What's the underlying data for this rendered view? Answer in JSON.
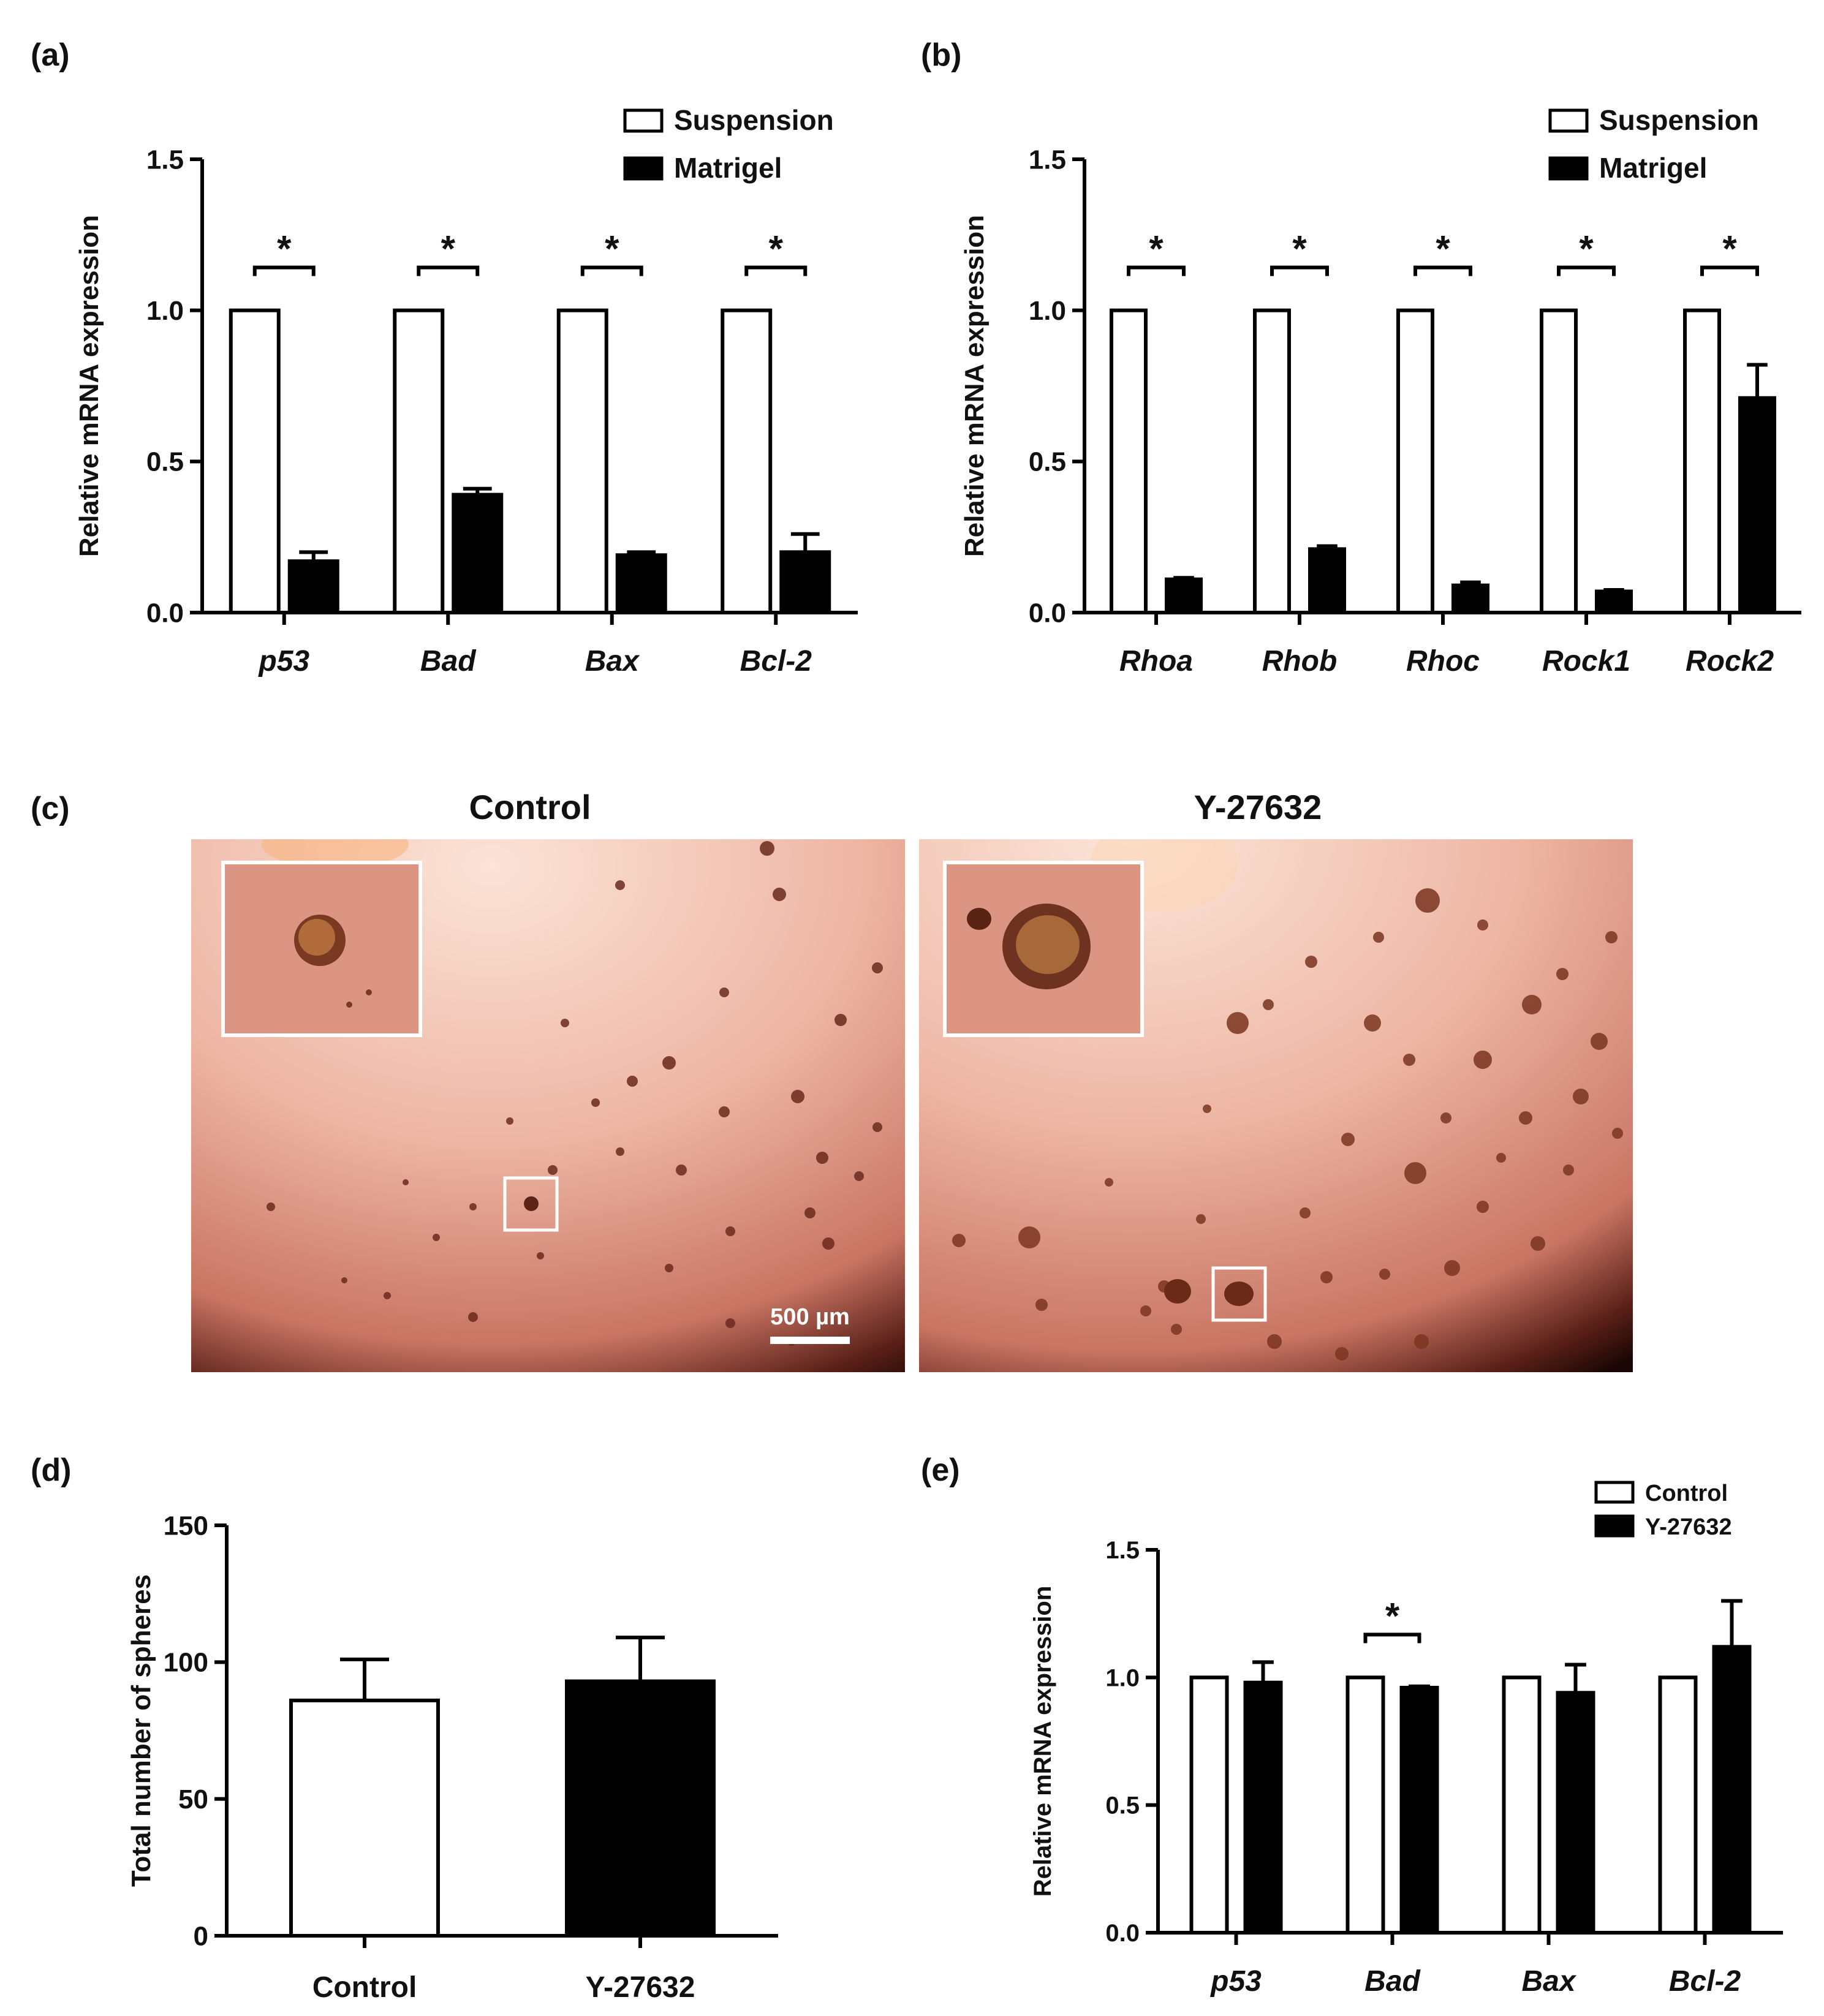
{
  "panels": {
    "a": "(a)",
    "b": "(b)",
    "c": "(c)",
    "d": "(d)",
    "e": "(e)"
  },
  "micrographs": {
    "left_title": "Control",
    "right_title": "Y-27632",
    "scale_bar_label": "500 µm",
    "background_color": "#e8a898"
  },
  "chart_data": [
    {
      "id": "a",
      "type": "bar",
      "categories": [
        "p53",
        "Bad",
        "Bax",
        "Bcl-2"
      ],
      "italic_categories": true,
      "series": [
        {
          "name": "Suspension",
          "fill": "#ffffff",
          "values": [
            1.0,
            1.0,
            1.0,
            1.0
          ],
          "errors": [
            0,
            0,
            0,
            0
          ]
        },
        {
          "name": "Matrigel",
          "fill": "#000000",
          "values": [
            0.17,
            0.39,
            0.19,
            0.2
          ],
          "errors": [
            0.03,
            0.02,
            0.01,
            0.06
          ]
        }
      ],
      "ylabel": "Relative mRNA expression",
      "ylim": [
        0,
        1.5
      ],
      "yticks": [
        "0.0",
        "0.5",
        "1.0",
        "1.5"
      ],
      "significance": [
        "*",
        "*",
        "*",
        "*"
      ],
      "legend": "top-right"
    },
    {
      "id": "b",
      "type": "bar",
      "categories": [
        "Rhoa",
        "Rhob",
        "Rhoc",
        "Rock1",
        "Rock2"
      ],
      "italic_categories": true,
      "series": [
        {
          "name": "Suspension",
          "fill": "#ffffff",
          "values": [
            1.0,
            1.0,
            1.0,
            1.0,
            1.0
          ],
          "errors": [
            0,
            0,
            0,
            0,
            0
          ]
        },
        {
          "name": "Matrigel",
          "fill": "#000000",
          "values": [
            0.11,
            0.21,
            0.09,
            0.07,
            0.71
          ],
          "errors": [
            0.005,
            0.01,
            0.01,
            0.005,
            0.11
          ]
        }
      ],
      "ylabel": "Relative mRNA expression",
      "ylim": [
        0,
        1.5
      ],
      "yticks": [
        "0.0",
        "0.5",
        "1.0",
        "1.5"
      ],
      "significance": [
        "*",
        "*",
        "*",
        "*",
        "*"
      ],
      "legend": "top-right"
    },
    {
      "id": "d",
      "type": "bar",
      "categories": [
        "Control",
        "Y-27632"
      ],
      "italic_categories": false,
      "series": [
        {
          "name": "",
          "fills": [
            "#ffffff",
            "#000000"
          ],
          "values": [
            86,
            93
          ],
          "errors": [
            15,
            16
          ]
        }
      ],
      "ylabel": "Total number of spheres",
      "ylim": [
        0,
        150
      ],
      "yticks": [
        "0",
        "50",
        "100",
        "150"
      ]
    },
    {
      "id": "e",
      "type": "bar",
      "categories": [
        "p53",
        "Bad",
        "Bax",
        "Bcl-2"
      ],
      "italic_categories": true,
      "series": [
        {
          "name": "Control",
          "fill": "#ffffff",
          "values": [
            1.0,
            1.0,
            1.0,
            1.0
          ],
          "errors": [
            0,
            0,
            0,
            0
          ]
        },
        {
          "name": "Y-27632",
          "fill": "#000000",
          "values": [
            0.98,
            0.96,
            0.94,
            1.12
          ],
          "errors": [
            0.08,
            0.005,
            0.11,
            0.18
          ]
        }
      ],
      "ylabel": "Relative mRNA expression",
      "ylim": [
        0,
        1.5
      ],
      "yticks": [
        "0.0",
        "0.5",
        "1.0",
        "1.5"
      ],
      "significance": [
        "",
        "*",
        "",
        ""
      ],
      "legend": "top-right"
    }
  ]
}
